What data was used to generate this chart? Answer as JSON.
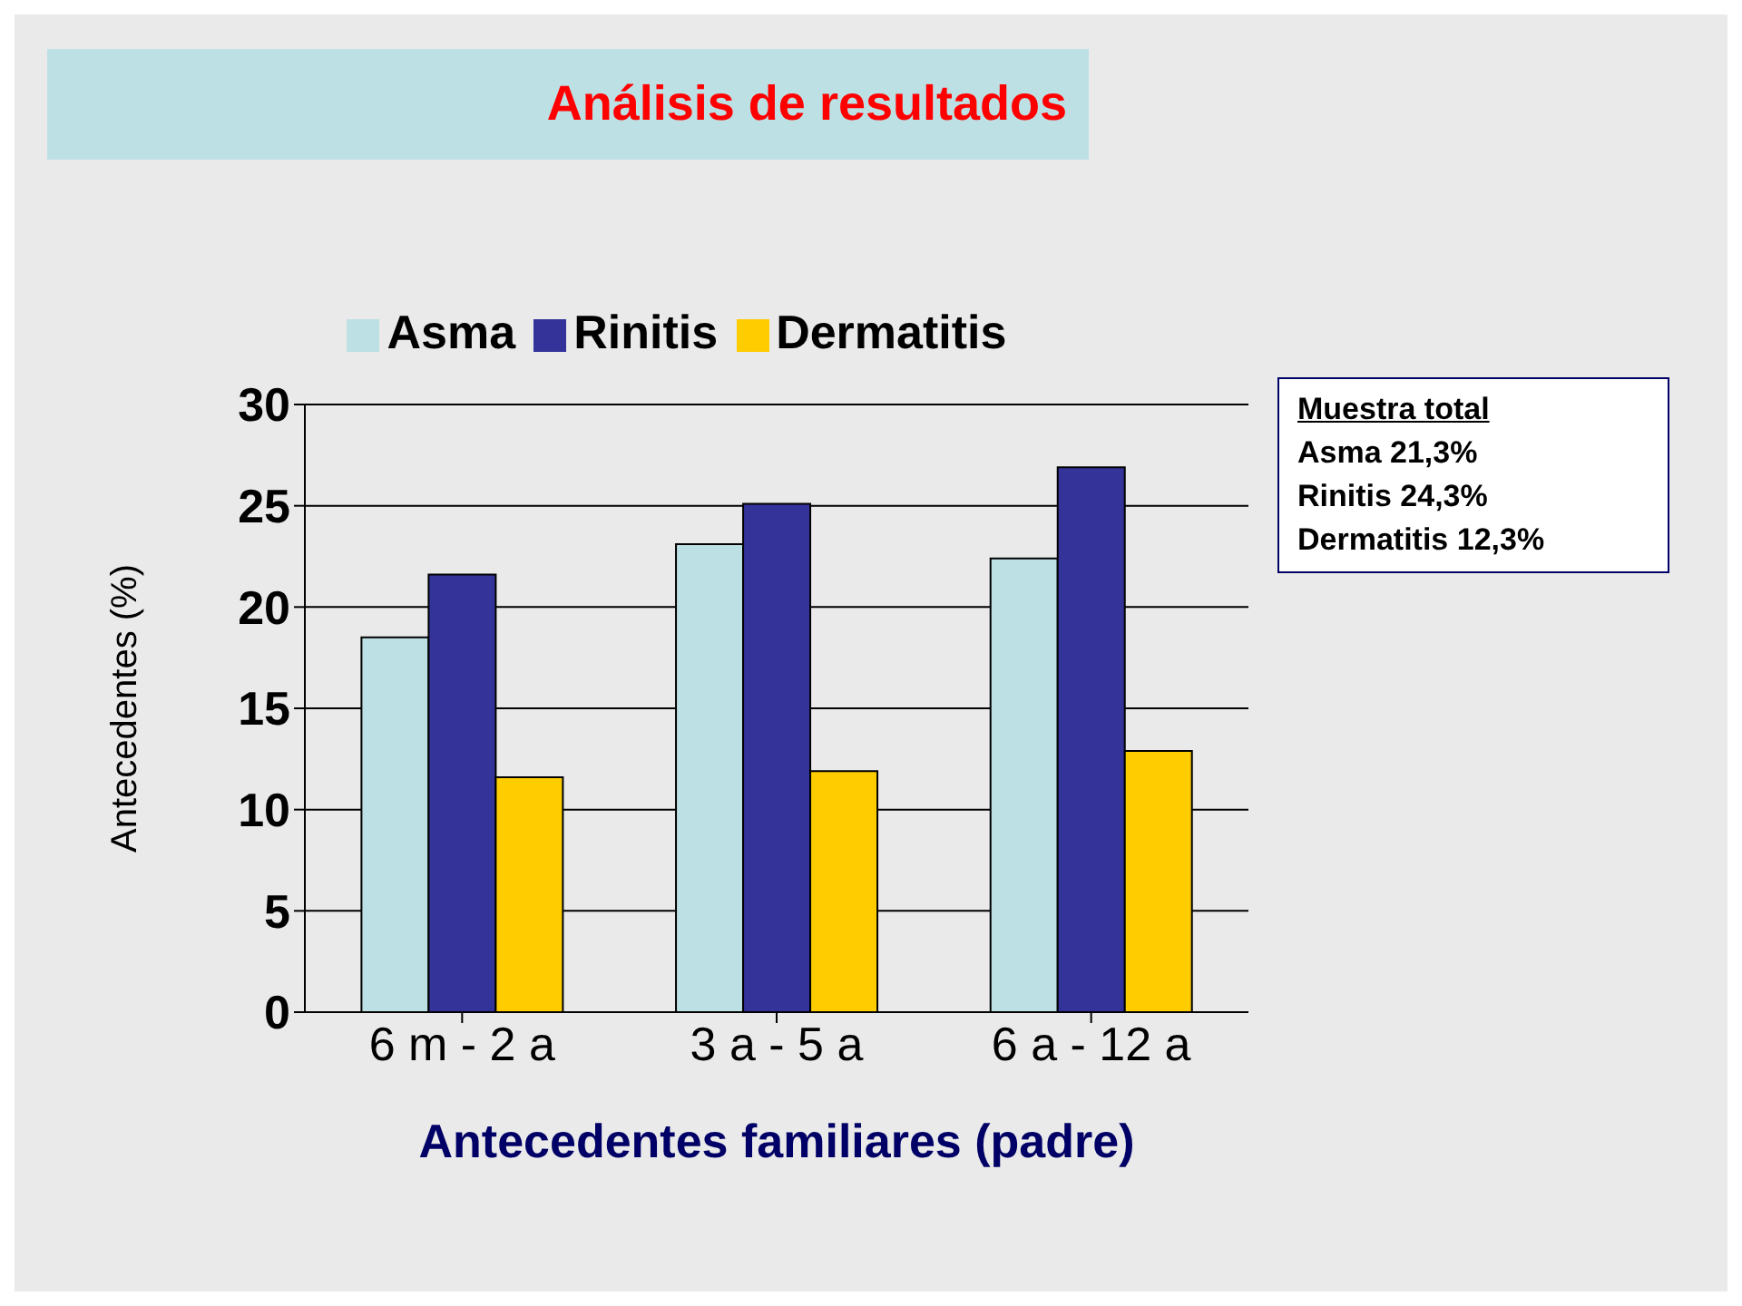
{
  "chart_data": {
    "type": "bar",
    "title": "Análisis de resultados",
    "xlabel": "Antecedentes familiares (padre)",
    "ylabel": "Antecedentes (%)",
    "categories": [
      "6 m - 2 a",
      "3 a - 5 a",
      "6 a - 12 a"
    ],
    "series": [
      {
        "name": "Asma",
        "color": "#bde0e4",
        "values": [
          18.5,
          23.1,
          22.4
        ]
      },
      {
        "name": "Rinitis",
        "color": "#333399",
        "values": [
          21.6,
          25.1,
          26.9
        ]
      },
      {
        "name": "Dermatitis",
        "color": "#ffcc00",
        "values": [
          11.6,
          11.9,
          12.9
        ]
      }
    ],
    "ylim": [
      0,
      30
    ],
    "yticks": [
      0,
      5,
      10,
      15,
      20,
      25,
      30
    ],
    "grid": "y",
    "legend": "top",
    "annotations": [
      "Muestra total",
      "Asma 21,3%",
      "Rinitis 24,3%",
      "Dermatitis 12,3%"
    ]
  }
}
